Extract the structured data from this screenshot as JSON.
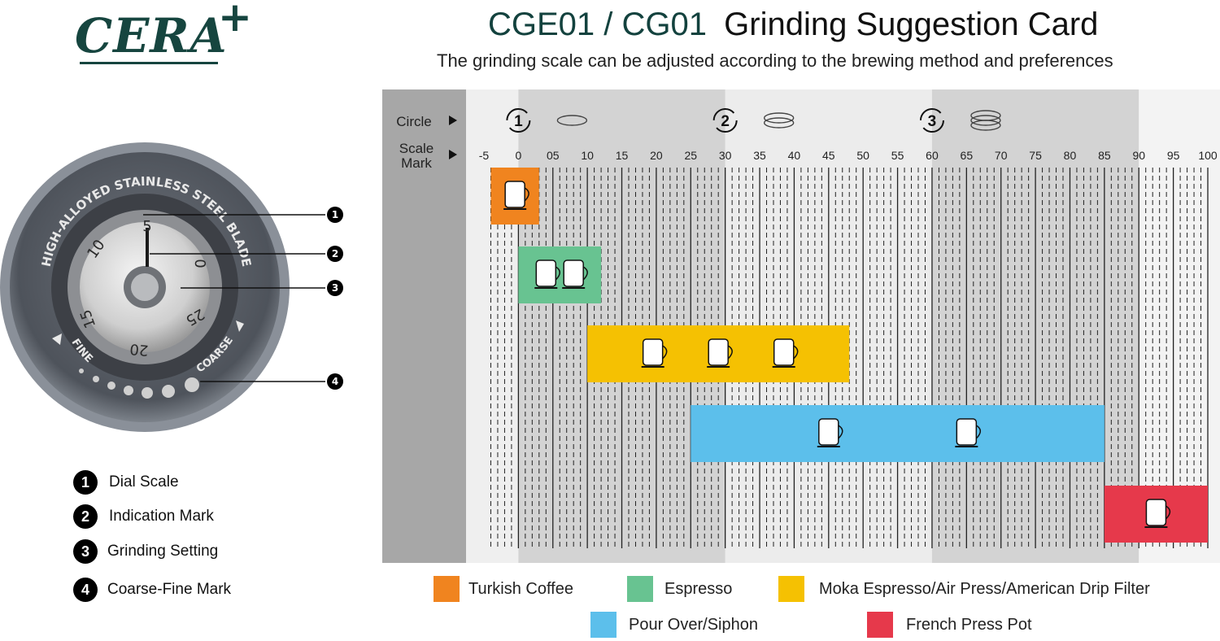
{
  "brand": {
    "name": "CERA",
    "plus": "+"
  },
  "header": {
    "model": "CGE01 / CG01",
    "title": "Grinding Suggestion Card",
    "subtitle": "The grinding scale can be adjusted according to the brewing method and preferences"
  },
  "dial": {
    "ring_text": "HIGH-ALLOYED STAINLESS STEEL BLADE",
    "fine_label": "FINE",
    "coarse_label": "COARSE",
    "numbers": [
      "5",
      "0",
      "25",
      "20",
      "15",
      "10"
    ]
  },
  "parts_legend": [
    {
      "num": "1",
      "label": "Dial Scale"
    },
    {
      "num": "2",
      "label": "Indication Mark"
    },
    {
      "num": "3",
      "label": "Grinding Setting"
    },
    {
      "num": "4",
      "label": "Coarse-Fine Mark"
    }
  ],
  "chart_data": {
    "type": "range-bar",
    "row_labels": {
      "circle": "Circle",
      "scale_mark": "Scale Mark"
    },
    "circles": [
      {
        "label": "1",
        "from": 0,
        "to": 30
      },
      {
        "label": "2",
        "from": 30,
        "to": 60
      },
      {
        "label": "3",
        "from": 60,
        "to": 90
      }
    ],
    "ticks": [
      "-5",
      "0",
      "05",
      "10",
      "15",
      "20",
      "25",
      "30",
      "35",
      "40",
      "45",
      "50",
      "55",
      "60",
      "65",
      "70",
      "75",
      "80",
      "85",
      "90",
      "95",
      "100"
    ],
    "xlim": [
      -5,
      100
    ],
    "ranges": [
      {
        "name": "Turkish Coffee",
        "from": -4,
        "to": 3,
        "color": "#f0841f",
        "icons": [
          "cezve-icon"
        ]
      },
      {
        "name": "Espresso",
        "from": 0,
        "to": 12,
        "color": "#68c391",
        "icons": [
          "portafilter-icon",
          "espresso-maker-icon"
        ]
      },
      {
        "name": "Moka Espresso/Air Press/American Drip Filter",
        "from": 10,
        "to": 48,
        "color": "#f5c102",
        "icons": [
          "moka-pot-icon",
          "air-press-icon",
          "drip-machine-icon"
        ]
      },
      {
        "name": "Pour Over/Siphon",
        "from": 25,
        "to": 85,
        "color": "#5cbfeb",
        "icons": [
          "pour-over-icon",
          "siphon-icon"
        ]
      },
      {
        "name": "French Press Pot",
        "from": 85,
        "to": 100,
        "color": "#e6394b",
        "icons": [
          "french-press-icon"
        ]
      }
    ]
  }
}
